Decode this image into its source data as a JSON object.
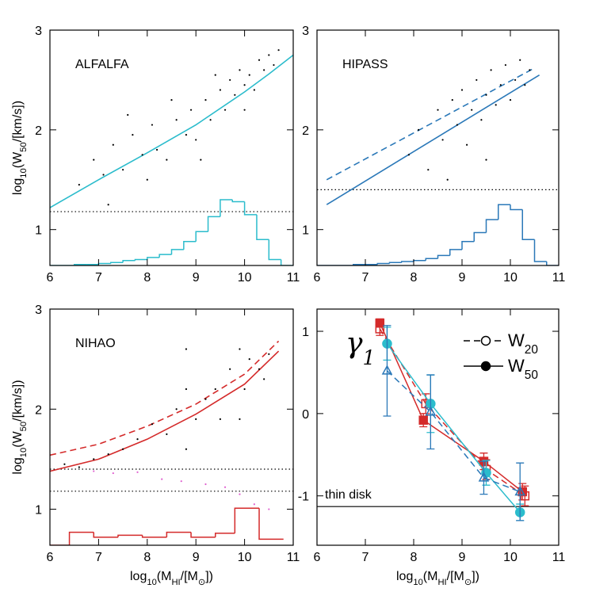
{
  "chart_data": [
    {
      "type": "scatter",
      "annotation": {
        "text": "ALFALFA",
        "color": "#2bbccc"
      },
      "ylabel": [
        "log",
        "10",
        "(W",
        "50",
        "/[km/s])"
      ],
      "xlim": [
        6,
        11
      ],
      "ylim": [
        0.64,
        3
      ],
      "xticks": [
        6,
        7,
        8,
        9,
        10,
        11
      ],
      "yticks": [
        1,
        2,
        3
      ],
      "series": [
        {
          "color": "#000000",
          "marker": "dot",
          "x": [
            6.6,
            6.9,
            7.1,
            7.3,
            7.5,
            7.7,
            7.9,
            8.1,
            8.2,
            8.4,
            8.6,
            8.8,
            8.9,
            9.0,
            9.2,
            9.3,
            9.5,
            9.6,
            9.7,
            9.8,
            9.9,
            10.0,
            10.1,
            10.2,
            10.3,
            10.4,
            10.5,
            10.6,
            8.0,
            8.5,
            9.1,
            9.4,
            7.2,
            7.6,
            10.0,
            10.7
          ],
          "y": [
            1.45,
            1.7,
            1.55,
            1.85,
            1.6,
            1.95,
            1.75,
            2.05,
            1.8,
            1.7,
            2.1,
            1.95,
            2.2,
            1.9,
            2.3,
            2.1,
            2.4,
            2.2,
            2.5,
            2.35,
            2.6,
            2.45,
            2.55,
            2.4,
            2.7,
            2.6,
            2.75,
            2.65,
            1.5,
            2.3,
            1.7,
            2.55,
            1.25,
            2.15,
            2.2,
            2.8
          ]
        }
      ],
      "lines": [
        {
          "color": "#2bbccc",
          "dash": "solid",
          "x": [
            6,
            7,
            8,
            9,
            10,
            10.5,
            11
          ],
          "y": [
            1.22,
            1.5,
            1.77,
            2.05,
            2.38,
            2.56,
            2.75
          ]
        }
      ],
      "hlines": [
        {
          "y": 1.18,
          "dash": "dotted"
        }
      ],
      "hist": {
        "color": "#2bbccc",
        "bins": [
          6,
          6.25,
          6.5,
          6.75,
          7,
          7.25,
          7.5,
          7.75,
          8,
          8.25,
          8.5,
          8.75,
          9,
          9.25,
          9.5,
          9.75,
          10,
          10.25,
          10.5,
          10.75,
          11
        ],
        "counts": [
          0.64,
          0.64,
          0.65,
          0.65,
          0.66,
          0.67,
          0.69,
          0.7,
          0.72,
          0.75,
          0.8,
          0.88,
          0.98,
          1.13,
          1.3,
          1.28,
          1.15,
          0.9,
          0.7,
          0.64
        ]
      }
    },
    {
      "type": "scatter",
      "annotation": {
        "text": "HIPASS",
        "color": "#2a78b8"
      },
      "xlim": [
        6,
        11
      ],
      "ylim": [
        0.64,
        3
      ],
      "xticks": [
        6,
        7,
        8,
        9,
        10,
        11
      ],
      "yticks": [
        1,
        2,
        3
      ],
      "series": [
        {
          "color": "#000000",
          "marker": "dot",
          "x": [
            7.9,
            8.1,
            8.3,
            8.5,
            8.6,
            8.8,
            8.9,
            9.0,
            9.1,
            9.2,
            9.3,
            9.4,
            9.5,
            9.6,
            9.7,
            9.8,
            9.9,
            10.0,
            10.1,
            10.2,
            10.3,
            10.4,
            8.7,
            9.5
          ],
          "y": [
            1.75,
            2.0,
            1.6,
            2.2,
            1.9,
            2.3,
            2.05,
            2.4,
            1.85,
            2.2,
            2.5,
            2.1,
            2.35,
            2.6,
            2.25,
            2.45,
            2.65,
            2.3,
            2.5,
            2.7,
            2.45,
            2.6,
            1.5,
            1.7
          ]
        }
      ],
      "lines": [
        {
          "color": "#2a78b8",
          "dash": "solid",
          "x": [
            6.2,
            10.6
          ],
          "y": [
            1.25,
            2.55
          ]
        },
        {
          "color": "#2a78b8",
          "dash": "dashed",
          "x": [
            6.2,
            10.5
          ],
          "y": [
            1.5,
            2.62
          ]
        }
      ],
      "hlines": [
        {
          "y": 1.4,
          "dash": "dotted"
        }
      ],
      "hist": {
        "color": "#2a78b8",
        "bins": [
          6,
          6.25,
          6.5,
          6.75,
          7,
          7.25,
          7.5,
          7.75,
          8,
          8.25,
          8.5,
          8.75,
          9,
          9.25,
          9.5,
          9.75,
          10,
          10.25,
          10.5,
          10.75,
          11
        ],
        "counts": [
          0.64,
          0.64,
          0.64,
          0.65,
          0.65,
          0.66,
          0.67,
          0.68,
          0.69,
          0.71,
          0.74,
          0.8,
          0.88,
          0.97,
          1.1,
          1.25,
          1.2,
          0.9,
          0.68,
          0.64
        ]
      }
    },
    {
      "type": "scatter",
      "annotation": {
        "text": "NIHAO",
        "color": "#d42a2a"
      },
      "ylabel": [
        "log",
        "10",
        "(W",
        "50",
        "/[km/s])"
      ],
      "xlabel": [
        "log",
        "10",
        "(M",
        "HI",
        "/[M",
        "⊙",
        "])"
      ],
      "xlim": [
        6,
        11
      ],
      "ylim": [
        0.64,
        3
      ],
      "xticks": [
        6,
        7,
        8,
        9,
        10,
        11
      ],
      "yticks": [
        1,
        2,
        3
      ],
      "series": [
        {
          "color": "#000000",
          "marker": "dot",
          "x": [
            6.3,
            6.6,
            6.9,
            7.2,
            7.5,
            7.8,
            8.1,
            8.4,
            8.6,
            8.8,
            8.8,
            9.0,
            9.2,
            9.4,
            9.5,
            9.7,
            9.9,
            10.0,
            10.1,
            10.3,
            10.4,
            10.5,
            8.8,
            9.9
          ],
          "y": [
            1.45,
            1.42,
            1.5,
            1.55,
            1.6,
            1.7,
            1.85,
            1.75,
            2.0,
            2.6,
            1.6,
            1.9,
            2.1,
            2.2,
            1.9,
            2.4,
            2.6,
            2.2,
            2.5,
            2.4,
            2.3,
            2.55,
            2.2,
            1.9
          ]
        },
        {
          "color": "#e060d0",
          "marker": "dot",
          "x": [
            6.9,
            7.3,
            7.8,
            8.3,
            8.7,
            9.2,
            9.6,
            9.9,
            10.2,
            10.5
          ],
          "y": [
            1.38,
            1.36,
            1.37,
            1.3,
            1.28,
            1.25,
            1.22,
            1.15,
            1.05,
            1.0
          ]
        }
      ],
      "lines": [
        {
          "color": "#d42a2a",
          "dash": "solid",
          "x": [
            6,
            7,
            8,
            9,
            10,
            10.7
          ],
          "y": [
            1.38,
            1.5,
            1.7,
            1.95,
            2.25,
            2.58
          ]
        },
        {
          "color": "#d42a2a",
          "dash": "dashed",
          "x": [
            6,
            7,
            8,
            9,
            10,
            10.7
          ],
          "y": [
            1.54,
            1.65,
            1.83,
            2.05,
            2.35,
            2.68
          ]
        }
      ],
      "hlines": [
        {
          "y": 1.4,
          "dash": "dotted"
        },
        {
          "y": 1.18,
          "dash": "dotted"
        }
      ],
      "hist": {
        "color": "#d42a2a",
        "bins": [
          6,
          6.4,
          6.9,
          7.4,
          7.9,
          8.4,
          8.9,
          9.4,
          9.8,
          10.3,
          10.8
        ],
        "counts": [
          0.64,
          0.77,
          0.72,
          0.74,
          0.72,
          0.77,
          0.72,
          0.76,
          1.01,
          0.7
        ]
      }
    },
    {
      "type": "errorbar",
      "annotation": {
        "text": [
          "γ",
          "1"
        ],
        "color": "#000000"
      },
      "xlabel": [
        "log",
        "10",
        "(M",
        "HI",
        "/[M",
        "⊙",
        "])"
      ],
      "xlim": [
        6,
        11
      ],
      "ylim": [
        -1.6,
        1.27
      ],
      "xticks": [
        6,
        7,
        8,
        9,
        10,
        11
      ],
      "yticks": [
        -1,
        0,
        1
      ],
      "series": [
        {
          "color": "#d42a2a",
          "marker": "square",
          "filled": true,
          "dash": "solid",
          "x": [
            7.3,
            8.2,
            9.45,
            10.25
          ],
          "y": [
            1.1,
            -0.08,
            -0.58,
            -0.95
          ],
          "err": [
            0.05,
            0.08,
            0.1,
            0.1
          ]
        },
        {
          "color": "#d42a2a",
          "marker": "square",
          "filled": false,
          "dash": "dashed",
          "x": [
            7.3,
            8.25,
            9.5,
            10.3
          ],
          "y": [
            1.03,
            0.12,
            -0.68,
            -1.0
          ],
          "err": [
            0.08,
            0.12,
            0.12,
            0.12
          ]
        },
        {
          "color": "#2bbccc",
          "marker": "circle",
          "filled": true,
          "dash": "solid",
          "x": [
            7.45,
            8.35,
            9.5,
            10.2
          ],
          "y": [
            0.85,
            0.12,
            -0.72,
            -1.2
          ],
          "err": [
            0.2,
            0.35,
            0.15,
            0.1
          ]
        },
        {
          "color": "#2a78b8",
          "marker": "triangle",
          "filled": false,
          "dash": "dashed",
          "x": [
            7.45,
            8.35,
            9.45,
            10.2
          ],
          "y": [
            0.52,
            0.02,
            -0.78,
            -0.95
          ],
          "err": [
            0.55,
            0.45,
            0.2,
            0.35
          ]
        }
      ],
      "hlines": [
        {
          "y": -1.13,
          "dash": "solid",
          "label": "thin disk"
        }
      ],
      "legend": [
        {
          "label": [
            "W",
            "20"
          ],
          "filled": false,
          "dash": "dashed"
        },
        {
          "label": [
            "W",
            "50"
          ],
          "filled": true,
          "dash": "solid"
        }
      ]
    }
  ]
}
